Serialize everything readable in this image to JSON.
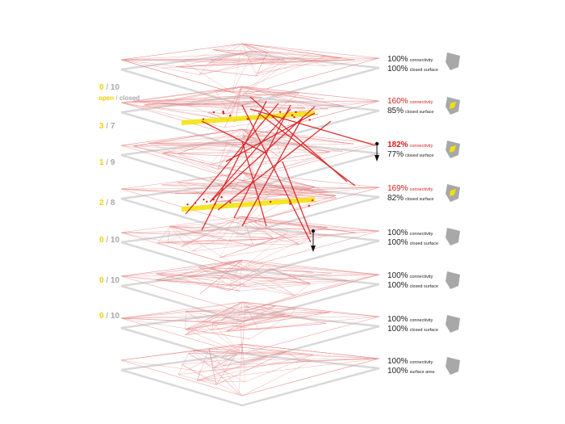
{
  "colors": {
    "network_line": "#e88a8a",
    "strong_line": "#d81e1e",
    "plane": "#d9d9d9",
    "highlight": "#f3e200",
    "icon_grey": "#a8a8a8",
    "open_text": "#f0d000"
  },
  "legend": {
    "open": "open",
    "sep": "/",
    "closed": "closed"
  },
  "floors": [
    {
      "ratio": null,
      "connectivity": "100%",
      "connectivity_label": "connectivity",
      "surface": "100%",
      "surface_label": "closed surface",
      "highlight": false,
      "tone": "normal",
      "icon": "pentagon-grey"
    },
    {
      "ratio": {
        "open": "0",
        "sep": "/",
        "closed": "10"
      },
      "connectivity": "160%",
      "connectivity_label": "connectivity",
      "surface": "85%",
      "surface_label": "closed surface",
      "highlight": true,
      "tone": "red",
      "icon": "pentagon-yellow-notch"
    },
    {
      "ratio": {
        "open": "3",
        "sep": "/",
        "closed": "7"
      },
      "connectivity": "182%",
      "connectivity_label": "connectivity",
      "surface": "77%",
      "surface_label": "closed surface",
      "highlight": false,
      "tone": "red-bold",
      "icon": "pentagon-yellow-notch"
    },
    {
      "ratio": {
        "open": "1",
        "sep": "/",
        "closed": "9"
      },
      "connectivity": "169%",
      "connectivity_label": "connectivity",
      "surface": "82%",
      "surface_label": "closed surface",
      "highlight": true,
      "tone": "red",
      "icon": "pentagon-yellow-notch"
    },
    {
      "ratio": {
        "open": "2",
        "sep": "/",
        "closed": "8"
      },
      "connectivity": "100%",
      "connectivity_label": "connectivity",
      "surface": "100%",
      "surface_label": "closed surface",
      "highlight": false,
      "tone": "normal",
      "icon": "pentagon-grey"
    },
    {
      "ratio": {
        "open": "0",
        "sep": "/",
        "closed": "10"
      },
      "connectivity": "100%",
      "connectivity_label": "connectivity",
      "surface": "100%",
      "surface_label": "closed surface",
      "highlight": false,
      "tone": "normal",
      "icon": "pentagon-grey"
    },
    {
      "ratio": {
        "open": "0",
        "sep": "/",
        "closed": "10"
      },
      "connectivity": "100%",
      "connectivity_label": "connectivity",
      "surface": "100%",
      "surface_label": "closed surface",
      "highlight": false,
      "tone": "normal",
      "icon": "pentagon-grey"
    },
    {
      "ratio": {
        "open": "0",
        "sep": "/",
        "closed": "10"
      },
      "connectivity": "100%",
      "connectivity_label": "connectivity",
      "surface": "100%",
      "surface_label": "surface area",
      "highlight": false,
      "tone": "normal",
      "icon": "pentagon-grey"
    }
  ],
  "markers": [
    {
      "name": "marker-floor-3",
      "icon": "pin-icon"
    },
    {
      "name": "marker-floor-5",
      "icon": "pin-icon"
    }
  ]
}
